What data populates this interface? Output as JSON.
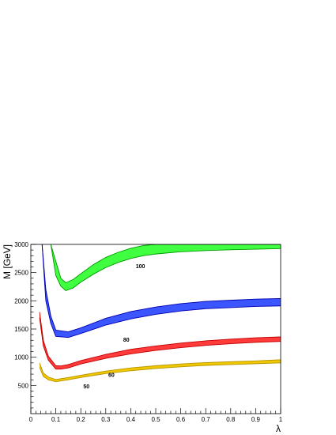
{
  "chart_data": {
    "type": "area",
    "title": "",
    "xlabel": "λ",
    "ylabel": "M [GeV]",
    "xlim": [
      0,
      1
    ],
    "ylim": [
      0,
      3000
    ],
    "grid": false,
    "legend": "none",
    "x_ticks": [
      {
        "value": 0,
        "label": "0"
      },
      {
        "value": 0.1,
        "label": "0.1"
      },
      {
        "value": 0.2,
        "label": "0.2"
      },
      {
        "value": 0.3,
        "label": "0.3"
      },
      {
        "value": 0.4,
        "label": "0.4"
      },
      {
        "value": 0.5,
        "label": "0.5"
      },
      {
        "value": 0.6,
        "label": "0.6"
      },
      {
        "value": 0.7,
        "label": "0.7"
      },
      {
        "value": 0.8,
        "label": "0.8"
      },
      {
        "value": 0.9,
        "label": "0.9"
      },
      {
        "value": 1,
        "label": "1"
      }
    ],
    "y_ticks": [
      {
        "value": 500,
        "label": "500"
      },
      {
        "value": 1000,
        "label": "1000"
      },
      {
        "value": 1500,
        "label": "1500"
      },
      {
        "value": 2000,
        "label": "2000"
      },
      {
        "value": 2500,
        "label": "2500"
      },
      {
        "value": 3000,
        "label": "3000"
      }
    ],
    "series": [
      {
        "label": "50",
        "label_at": [
          0.21,
          450
        ],
        "color": "#f0c800",
        "line_color": "#b89400",
        "x": [
          0.035,
          0.05,
          0.07,
          0.1,
          0.15,
          0.2,
          0.3,
          0.4,
          0.5,
          0.6,
          0.7,
          0.8,
          0.9,
          1.0
        ],
        "lower": [
          820,
          660,
          600,
          565,
          600,
          640,
          710,
          760,
          800,
          830,
          855,
          870,
          885,
          900
        ],
        "upper": [
          900,
          720,
          650,
          605,
          640,
          680,
          755,
          810,
          850,
          880,
          905,
          920,
          935,
          955
        ]
      },
      {
        "label": "60",
        "label_at": [
          0.31,
          655
        ],
        "color": "#ff3b3b",
        "line_color": "#c00000",
        "x": [
          0.035,
          0.05,
          0.07,
          0.1,
          0.12,
          0.15,
          0.2,
          0.3,
          0.4,
          0.5,
          0.6,
          0.7,
          0.8,
          0.9,
          1.0
        ],
        "lower": [
          1700,
          1200,
          950,
          790,
          790,
          810,
          880,
          980,
          1060,
          1120,
          1170,
          1210,
          1240,
          1265,
          1280
        ],
        "upper": [
          1800,
          1300,
          1020,
          850,
          845,
          870,
          940,
          1050,
          1140,
          1200,
          1250,
          1290,
          1320,
          1345,
          1360
        ]
      },
      {
        "label": "80",
        "label_at": [
          0.37,
          1275
        ],
        "color": "#3b55ff",
        "line_color": "#0000b0",
        "x": [
          0.045,
          0.06,
          0.08,
          0.1,
          0.15,
          0.2,
          0.3,
          0.4,
          0.5,
          0.6,
          0.7,
          0.8,
          0.9,
          1.0
        ],
        "lower": [
          3000,
          2000,
          1600,
          1370,
          1350,
          1420,
          1570,
          1680,
          1760,
          1820,
          1860,
          1880,
          1900,
          1910
        ],
        "upper": [
          3000,
          2200,
          1730,
          1480,
          1450,
          1520,
          1690,
          1810,
          1890,
          1950,
          1990,
          2010,
          2030,
          2040
        ]
      },
      {
        "label": "100",
        "label_at": [
          0.42,
          2580
        ],
        "color": "#40ff40",
        "line_color": "#009900",
        "x": [
          0.08,
          0.1,
          0.12,
          0.14,
          0.17,
          0.2,
          0.25,
          0.3,
          0.35,
          0.4,
          0.45,
          0.5,
          0.6,
          0.7,
          0.8,
          0.9,
          1.0
        ],
        "lower": [
          3000,
          2450,
          2260,
          2180,
          2230,
          2330,
          2470,
          2590,
          2680,
          2750,
          2800,
          2830,
          2870,
          2890,
          2905,
          2915,
          2925
        ],
        "upper": [
          3000,
          2700,
          2400,
          2320,
          2380,
          2480,
          2640,
          2770,
          2860,
          2930,
          2980,
          3000,
          3000,
          3000,
          3000,
          3000,
          3000
        ]
      }
    ]
  }
}
